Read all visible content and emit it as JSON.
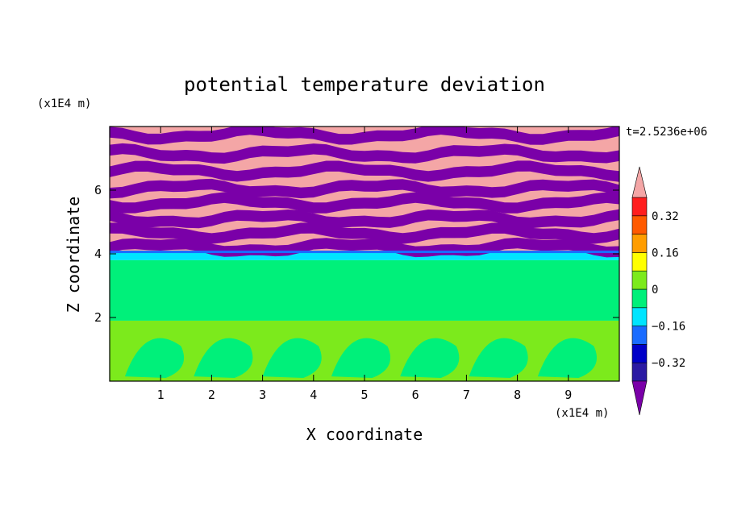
{
  "chart_data": {
    "type": "heatmap",
    "title": "potential temperature deviation",
    "xlabel": "X coordinate",
    "ylabel": "Z coordinate",
    "x_unit": "(x1E4 m)",
    "y_unit": "(x1E4 m)",
    "time_label": "t=2.5236e+06",
    "xlim": [
      0,
      10
    ],
    "ylim": [
      0,
      8
    ],
    "x_ticks": [
      "1",
      "2",
      "3",
      "4",
      "5",
      "6",
      "7",
      "8",
      "9"
    ],
    "y_ticks": [
      "2",
      "4",
      "6"
    ],
    "colorbar": {
      "ticks": [
        "0.32",
        "0.16",
        "0",
        "-0.16",
        "-0.32"
      ],
      "levels": [
        -0.4,
        -0.32,
        -0.24,
        -0.16,
        -0.08,
        0,
        0.08,
        0.16,
        0.24,
        0.32,
        0.4
      ],
      "colors": [
        "#7a00a8",
        "#2b1aa3",
        "#0000c8",
        "#1a6cff",
        "#00e5ff",
        "#00f07a",
        "#7cea1c",
        "#ffff00",
        "#ff9d00",
        "#ff5a00",
        "#ff1e1e",
        "#f4a6a6"
      ]
    },
    "bands": [
      {
        "z_from": 0,
        "z_to": 1.9,
        "color": "#7cea1c"
      },
      {
        "z_from": 1.9,
        "z_to": 3.8,
        "color": "#00f07a"
      },
      {
        "z_from": 3.8,
        "z_to": 4.05,
        "color": "#00e5ff"
      },
      {
        "z_from": 4.05,
        "z_to": 8,
        "color": "#f4a6a6"
      }
    ],
    "stripes": [
      {
        "z": 4.2,
        "color": "#7a00a8"
      },
      {
        "z": 4.65,
        "color": "#7a00a8"
      },
      {
        "z": 5.1,
        "color": "#7a00a8"
      },
      {
        "z": 5.6,
        "color": "#7a00a8"
      },
      {
        "z": 6.05,
        "color": "#7a00a8"
      },
      {
        "z": 6.6,
        "color": "#7a00a8"
      },
      {
        "z": 7.15,
        "color": "#7a00a8"
      },
      {
        "z": 7.75,
        "color": "#7a00a8"
      }
    ]
  }
}
